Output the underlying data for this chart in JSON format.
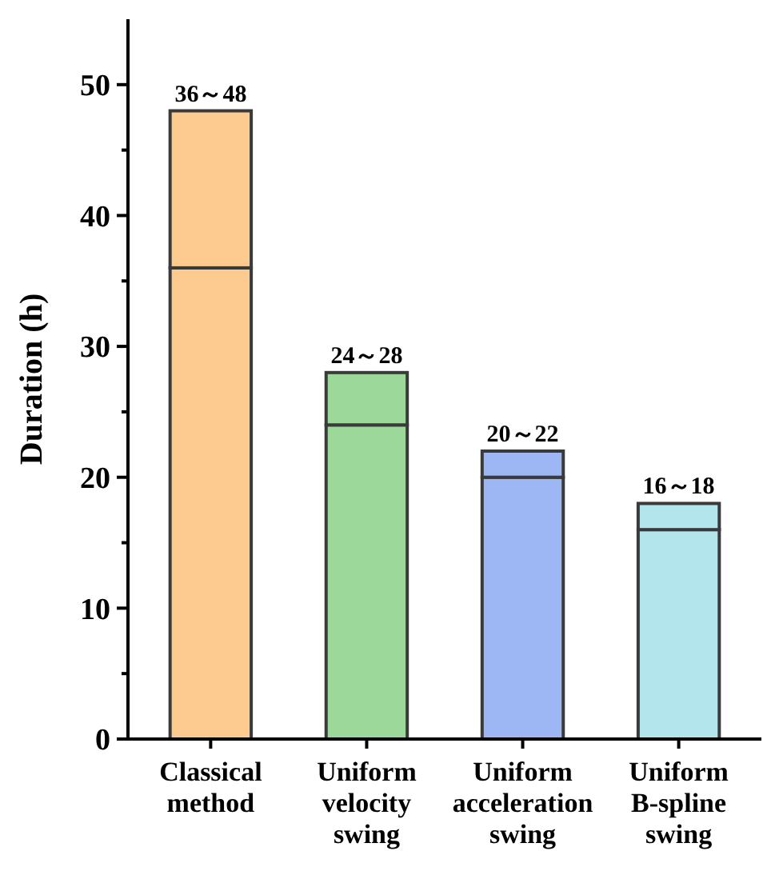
{
  "chart_data": {
    "type": "bar",
    "stacked": true,
    "ylabel": "Duration (h)",
    "categories": [
      "Classical method",
      "Uniform velocity swing",
      "Uniform acceleration swing",
      "Uniform B-spline swing"
    ],
    "series": [
      {
        "values": [
          36,
          24,
          20,
          16
        ],
        "colors": [
          "#fdcb8f",
          "#9dd89b",
          "#9db7f5",
          "#b3e5ec"
        ]
      },
      {
        "values": [
          12,
          4,
          2,
          2
        ],
        "colors": [
          "#fdcb8f",
          "#9dd89b",
          "#9db7f5",
          "#b3e5ec"
        ]
      }
    ],
    "ylim": [
      0,
      55
    ],
    "yticks": [
      0,
      {
        "value": 5,
        "label": null
      },
      10,
      {
        "value": 15,
        "label": null
      },
      20,
      {
        "value": 25,
        "label": null
      },
      30,
      {
        "value": 35,
        "label": null
      },
      40,
      {
        "value": 45,
        "label": null
      },
      50
    ],
    "annotations": [
      {
        "text": "36～48",
        "x": "Classical method",
        "y": 48
      },
      {
        "text": "24～28",
        "x": "Uniform velocity swing",
        "y": 28
      },
      {
        "text": "20～22",
        "x": "Uniform acceleration swing",
        "y": 22
      },
      {
        "text": "16～18",
        "x": "Uniform B-spline swing",
        "y": 18
      }
    ],
    "grid": false
  }
}
